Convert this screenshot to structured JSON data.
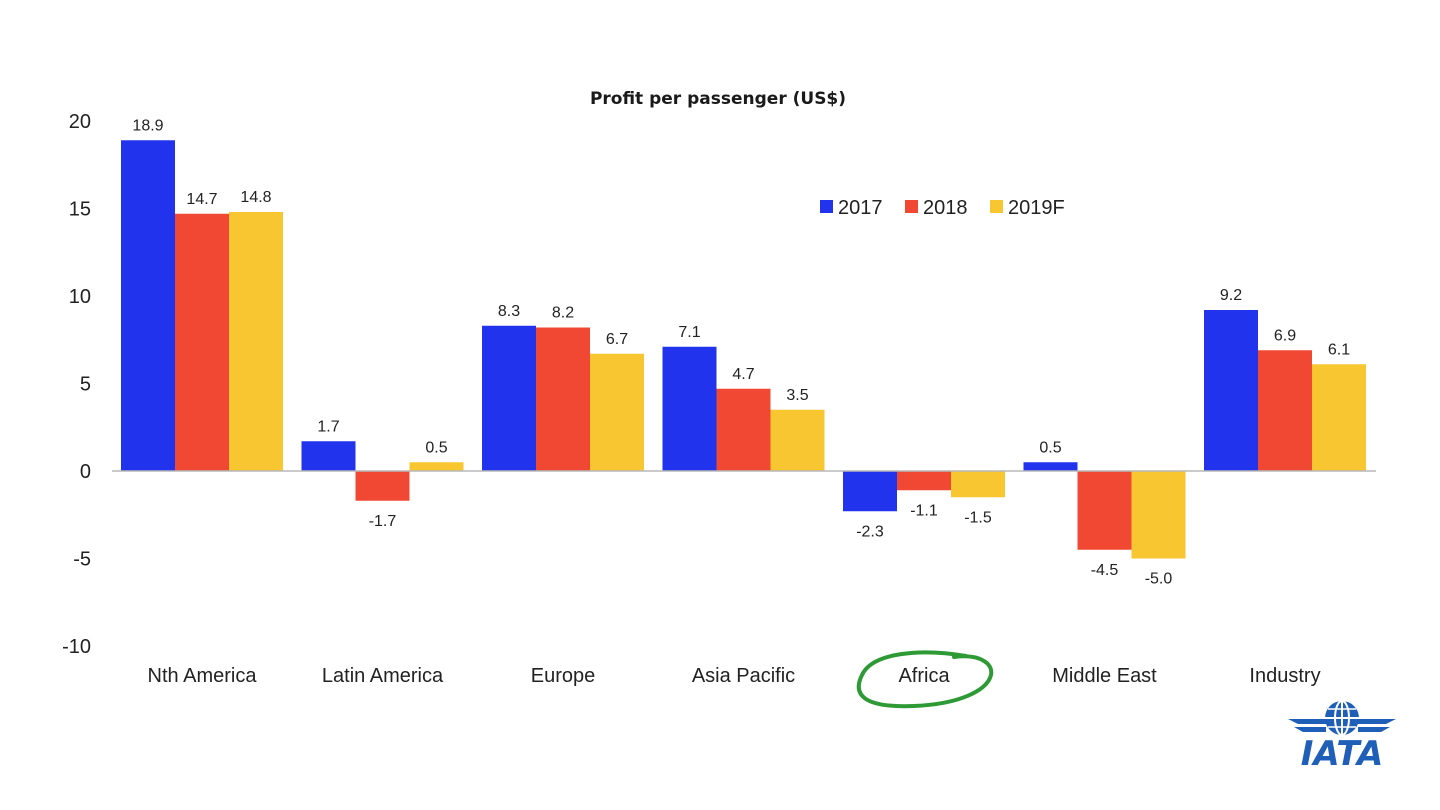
{
  "chart_data": {
    "type": "bar",
    "title": "Profit per passenger (US$)",
    "xlabel": "",
    "ylabel": "",
    "categories": [
      "Nth America",
      "Latin America",
      "Europe",
      "Asia Pacific",
      "Africa",
      "Middle East",
      "Industry"
    ],
    "series": [
      {
        "name": "2017",
        "color": "#2233ee",
        "values": [
          18.9,
          1.7,
          8.3,
          7.1,
          -2.3,
          0.5,
          9.2
        ]
      },
      {
        "name": "2018",
        "color": "#f04832",
        "values": [
          14.7,
          -1.7,
          8.2,
          4.7,
          -1.1,
          -4.5,
          6.9
        ]
      },
      {
        "name": "2019F",
        "color": "#f8c631",
        "values": [
          14.8,
          0.5,
          6.7,
          3.5,
          -1.5,
          -5.0,
          6.1
        ]
      }
    ],
    "data_labels": [
      [
        "18.9",
        "1.7",
        "8.3",
        "7.1",
        "-2.3",
        "0.5",
        "9.2"
      ],
      [
        "14.7",
        "-1.7",
        "8.2",
        "4.7",
        "-1.1",
        "-4.5",
        "6.9"
      ],
      [
        "14.8",
        "0.5",
        "6.7",
        "3.5",
        "-1.5",
        "-5.0",
        "6.1"
      ]
    ],
    "yticks": [
      "20",
      "15",
      "10",
      "5",
      "0",
      "-5",
      "-10"
    ],
    "ylim": [
      -10,
      20
    ],
    "grid": false,
    "legend_position": "top-right",
    "highlight_category": "Africa",
    "highlight_color": "#2e9a36"
  },
  "logo": {
    "text": "IATA",
    "color": "#1f5fb8"
  }
}
